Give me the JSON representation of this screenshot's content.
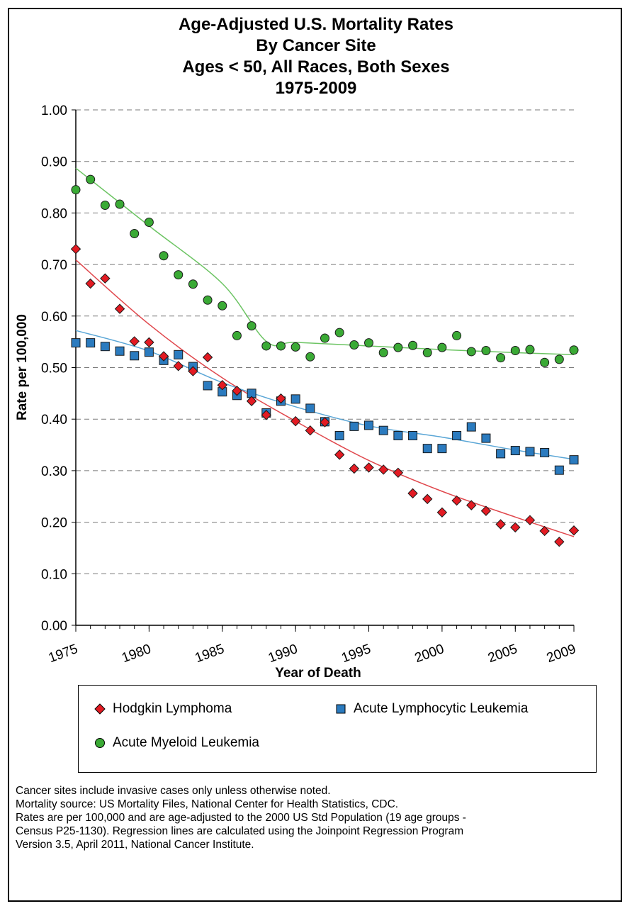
{
  "title_lines": [
    "Age-Adjusted U.S. Mortality Rates",
    "By Cancer Site",
    "Ages < 50, All Races, Both Sexes",
    "1975-2009"
  ],
  "chart_data": {
    "type": "scatter",
    "title": "Age-Adjusted U.S. Mortality Rates By Cancer Site Ages < 50, All Races, Both Sexes 1975-2009",
    "xlabel": "Year of Death",
    "ylabel": "Rate per 100,000",
    "xlim": [
      1975,
      2009
    ],
    "ylim": [
      0,
      1.0
    ],
    "x_ticks": [
      1975,
      1980,
      1985,
      1990,
      1995,
      2000,
      2005,
      2009
    ],
    "x_tick_labels": [
      "1975",
      "1980",
      "1985",
      "1990",
      "1995",
      "2000",
      "2005",
      "2009"
    ],
    "y_ticks": [
      0,
      0.1,
      0.2,
      0.3,
      0.4,
      0.5,
      0.6,
      0.7,
      0.8,
      0.9,
      1.0
    ],
    "y_tick_labels": [
      "0.00",
      "0.10",
      "0.20",
      "0.30",
      "0.40",
      "0.50",
      "0.60",
      "0.70",
      "0.80",
      "0.90",
      "1.00"
    ],
    "grid": "horizontal dashed",
    "x": [
      1975,
      1976,
      1977,
      1978,
      1979,
      1980,
      1981,
      1982,
      1983,
      1984,
      1985,
      1986,
      1987,
      1988,
      1989,
      1990,
      1991,
      1992,
      1993,
      1994,
      1995,
      1996,
      1997,
      1998,
      1999,
      2000,
      2001,
      2002,
      2003,
      2004,
      2005,
      2006,
      2007,
      2008,
      2009
    ],
    "series": [
      {
        "name": "Hodgkin Lymphoma",
        "marker": "diamond",
        "color": "#e31b23",
        "values": [
          0.73,
          0.663,
          0.673,
          0.614,
          0.551,
          0.549,
          0.522,
          0.503,
          0.493,
          0.52,
          0.466,
          0.455,
          0.435,
          0.408,
          0.44,
          0.396,
          0.378,
          0.394,
          0.331,
          0.304,
          0.306,
          0.302,
          0.296,
          0.256,
          0.245,
          0.219,
          0.242,
          0.233,
          0.222,
          0.196,
          0.19,
          0.204,
          0.183,
          0.162,
          0.184
        ],
        "regression": [
          [
            1975,
            0.709
          ],
          [
            1980,
            0.584
          ],
          [
            1985,
            0.48
          ],
          [
            1990,
            0.396
          ],
          [
            1995,
            0.32
          ],
          [
            2000,
            0.26
          ],
          [
            2005,
            0.21
          ],
          [
            2009,
            0.172
          ]
        ]
      },
      {
        "name": "Acute Lymphocytic Leukemia",
        "marker": "square",
        "color": "#2b7bbf",
        "values": [
          0.548,
          0.548,
          0.541,
          0.532,
          0.523,
          0.53,
          0.514,
          0.525,
          0.502,
          0.465,
          0.453,
          0.446,
          0.45,
          0.412,
          0.435,
          0.439,
          0.421,
          0.395,
          0.368,
          0.386,
          0.388,
          0.378,
          0.368,
          0.368,
          0.343,
          0.343,
          0.368,
          0.385,
          0.363,
          0.333,
          0.339,
          0.337,
          0.335,
          0.301,
          0.321
        ],
        "regression": [
          [
            1975,
            0.572
          ],
          [
            1980,
            0.532
          ],
          [
            1985,
            0.471
          ],
          [
            1990,
            0.424
          ],
          [
            1995,
            0.387
          ],
          [
            2000,
            0.365
          ],
          [
            2005,
            0.34
          ],
          [
            2009,
            0.322
          ]
        ]
      },
      {
        "name": "Acute Myeloid Leukemia",
        "marker": "circle",
        "color": "#3aaa35",
        "values": [
          0.845,
          0.865,
          0.815,
          0.817,
          0.76,
          0.782,
          0.717,
          0.68,
          0.662,
          0.631,
          0.62,
          0.562,
          0.581,
          0.542,
          0.542,
          0.54,
          0.521,
          0.557,
          0.568,
          0.544,
          0.548,
          0.529,
          0.539,
          0.543,
          0.529,
          0.539,
          0.562,
          0.531,
          0.533,
          0.519,
          0.533,
          0.535,
          0.51,
          0.516,
          0.534
        ],
        "regression": [
          [
            1975,
            0.887
          ],
          [
            1980,
            0.775
          ],
          [
            1985,
            0.663
          ],
          [
            1988,
            0.551
          ],
          [
            1990,
            0.549
          ],
          [
            1995,
            0.542
          ],
          [
            2000,
            0.535
          ],
          [
            2005,
            0.529
          ],
          [
            2009,
            0.525
          ]
        ]
      }
    ],
    "legend_position": "below plot"
  },
  "legend": {
    "items": [
      "Hodgkin Lymphoma",
      "Acute Lymphocytic Leukemia",
      "Acute Myeloid Leukemia"
    ]
  },
  "notes": [
    "Cancer sites include invasive cases only unless otherwise noted.",
    "Mortality source: US Mortality Files, National Center for Health Statistics, CDC.",
    "Rates are per 100,000 and are age-adjusted to the 2000 US Std Population (19 age groups -",
    "Census P25-1130). Regression lines are calculated using the Joinpoint Regression Program",
    "Version 3.5, April 2011, National Cancer Institute."
  ]
}
